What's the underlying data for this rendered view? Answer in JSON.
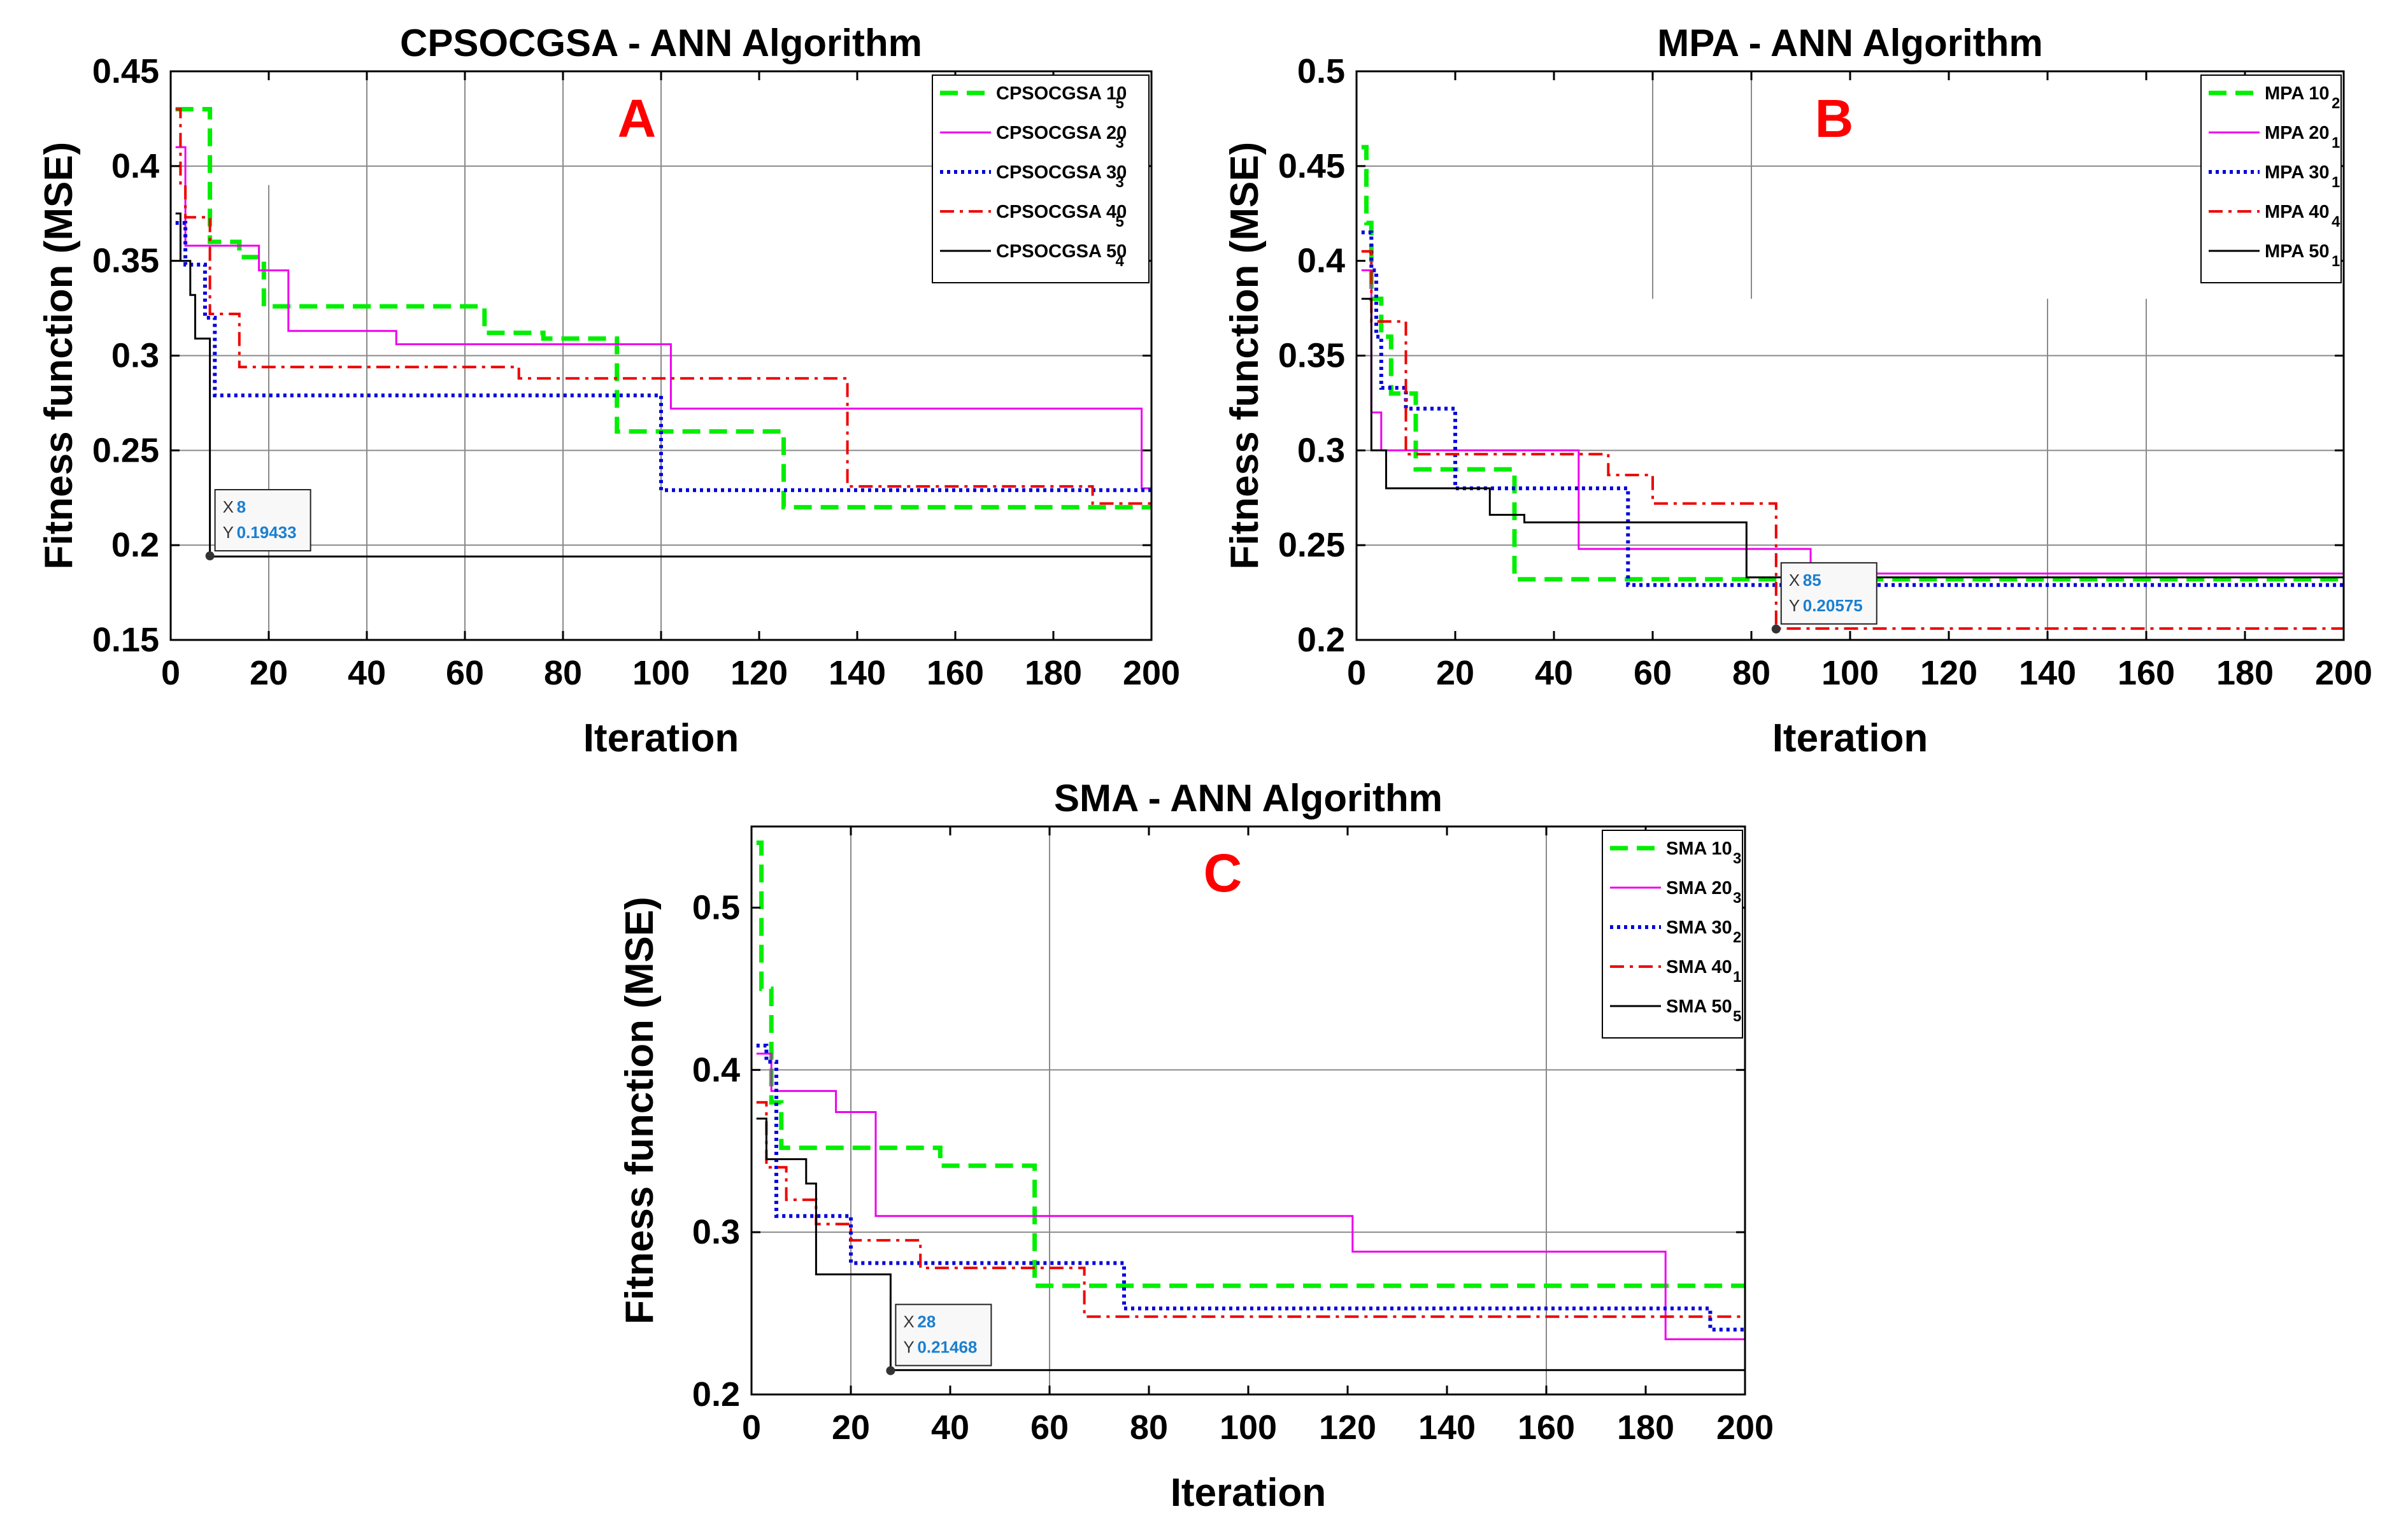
{
  "chart_data": [
    {
      "type": "line",
      "title": "CPSOCGSA - ANN Algorithm",
      "panel_letter": "A",
      "xlabel": "Iteration",
      "ylabel": "Fitness function (MSE)",
      "xlim": [
        0,
        200
      ],
      "ylim": [
        0.15,
        0.45
      ],
      "xticks": [
        0,
        20,
        40,
        60,
        80,
        100,
        120,
        140,
        160,
        180,
        200
      ],
      "yticks": [
        0.15,
        0.2,
        0.25,
        0.3,
        0.35,
        0.4,
        0.45
      ],
      "ytick_labels": [
        "0.15",
        "0.2",
        "0.25",
        "0.3",
        "0.35",
        "0.4",
        "0.45"
      ],
      "grid": true,
      "legend_position": "top-right",
      "series": [
        {
          "name": "CPSOCGSA 10",
          "subscript": "5",
          "color": "#00ee00",
          "style": "dashed",
          "points": [
            [
              1,
              0.43
            ],
            [
              2,
              0.43
            ],
            [
              7,
              0.43
            ],
            [
              8,
              0.36
            ],
            [
              14,
              0.36
            ],
            [
              14,
              0.352
            ],
            [
              18,
              0.352
            ],
            [
              19,
              0.326
            ],
            [
              63,
              0.326
            ],
            [
              64,
              0.312
            ],
            [
              74,
              0.312
            ],
            [
              76,
              0.309
            ],
            [
              90,
              0.309
            ],
            [
              91,
              0.26
            ],
            [
              124,
              0.26
            ],
            [
              125,
              0.22
            ],
            [
              200,
              0.22
            ]
          ]
        },
        {
          "name": "CPSOCGSA 20",
          "subscript": "3",
          "color": "#ee00ee",
          "style": "solid",
          "points": [
            [
              1,
              0.41
            ],
            [
              2,
              0.41
            ],
            [
              3,
              0.358
            ],
            [
              18,
              0.358
            ],
            [
              18,
              0.345
            ],
            [
              22,
              0.345
            ],
            [
              24,
              0.313
            ],
            [
              45,
              0.313
            ],
            [
              46,
              0.306
            ],
            [
              101,
              0.306
            ],
            [
              102,
              0.272
            ],
            [
              196,
              0.272
            ],
            [
              198,
              0.23
            ],
            [
              200,
              0.23
            ]
          ]
        },
        {
          "name": "CPSOCGSA 30",
          "subscript": "3",
          "color": "#0000dd",
          "style": "dotted",
          "points": [
            [
              1,
              0.37
            ],
            [
              2,
              0.37
            ],
            [
              3,
              0.348
            ],
            [
              6,
              0.348
            ],
            [
              7,
              0.32
            ],
            [
              9,
              0.32
            ],
            [
              9,
              0.279
            ],
            [
              98,
              0.279
            ],
            [
              100,
              0.229
            ],
            [
              200,
              0.229
            ]
          ]
        },
        {
          "name": "CPSOCGSA 40",
          "subscript": "5",
          "color": "#ee0000",
          "style": "dashdot",
          "points": [
            [
              1,
              0.43
            ],
            [
              2,
              0.39
            ],
            [
              3,
              0.373
            ],
            [
              7,
              0.373
            ],
            [
              8,
              0.322
            ],
            [
              12,
              0.322
            ],
            [
              14,
              0.294
            ],
            [
              70,
              0.294
            ],
            [
              71,
              0.288
            ],
            [
              137,
              0.288
            ],
            [
              138,
              0.231
            ],
            [
              187,
              0.231
            ],
            [
              188,
              0.222
            ],
            [
              200,
              0.222
            ]
          ]
        },
        {
          "name": "CPSOCGSA 50",
          "subscript": "4",
          "color": "#000000",
          "style": "solid",
          "points": [
            [
              1,
              0.375
            ],
            [
              2,
              0.35
            ],
            [
              4,
              0.332
            ],
            [
              5,
              0.309
            ],
            [
              7,
              0.309
            ],
            [
              8,
              0.194
            ],
            [
              200,
              0.194
            ]
          ]
        }
      ],
      "datatip": {
        "x": 8,
        "y": 0.19433,
        "x_label": "X",
        "y_label": "Y",
        "x_text": "8",
        "y_text": "0.19433"
      }
    },
    {
      "type": "line",
      "title": "MPA - ANN Algorithm",
      "panel_letter": "B",
      "xlabel": "Iteration",
      "ylabel": "Fitness function (MSE)",
      "xlim": [
        0,
        200
      ],
      "ylim": [
        0.2,
        0.5
      ],
      "xticks": [
        0,
        20,
        40,
        60,
        80,
        100,
        120,
        140,
        160,
        180,
        200
      ],
      "yticks": [
        0.2,
        0.25,
        0.3,
        0.35,
        0.4,
        0.45,
        0.5
      ],
      "ytick_labels": [
        "0.2",
        "0.25",
        "0.3",
        "0.35",
        "0.4",
        "0.45",
        "0.5"
      ],
      "grid": true,
      "legend_position": "top-right",
      "series": [
        {
          "name": "MPA 10",
          "subscript": "2",
          "color": "#00ee00",
          "style": "dashed",
          "points": [
            [
              1,
              0.46
            ],
            [
              2,
              0.42
            ],
            [
              3,
              0.38
            ],
            [
              5,
              0.36
            ],
            [
              7,
              0.33
            ],
            [
              11,
              0.33
            ],
            [
              12,
              0.29
            ],
            [
              30,
              0.29
            ],
            [
              32,
              0.232
            ],
            [
              200,
              0.232
            ]
          ]
        },
        {
          "name": "MPA 20",
          "subscript": "1",
          "color": "#ee00ee",
          "style": "solid",
          "points": [
            [
              1,
              0.395
            ],
            [
              3,
              0.32
            ],
            [
              5,
              0.3
            ],
            [
              43,
              0.3
            ],
            [
              45,
              0.248
            ],
            [
              91,
              0.248
            ],
            [
              92,
              0.235
            ],
            [
              200,
              0.235
            ]
          ]
        },
        {
          "name": "MPA 30",
          "subscript": "1",
          "color": "#0000dd",
          "style": "dotted",
          "points": [
            [
              1,
              0.415
            ],
            [
              3,
              0.395
            ],
            [
              4,
              0.36
            ],
            [
              5,
              0.333
            ],
            [
              8,
              0.333
            ],
            [
              10,
              0.322
            ],
            [
              19,
              0.322
            ],
            [
              20,
              0.28
            ],
            [
              53,
              0.28
            ],
            [
              55,
              0.229
            ],
            [
              200,
              0.229
            ]
          ]
        },
        {
          "name": "MPA 40",
          "subscript": "4",
          "color": "#ee0000",
          "style": "dashdot",
          "points": [
            [
              1,
              0.405
            ],
            [
              3,
              0.368
            ],
            [
              8,
              0.368
            ],
            [
              10,
              0.298
            ],
            [
              50,
              0.298
            ],
            [
              51,
              0.287
            ],
            [
              59,
              0.287
            ],
            [
              60,
              0.272
            ],
            [
              84,
              0.272
            ],
            [
              85,
              0.206
            ],
            [
              200,
              0.206
            ]
          ]
        },
        {
          "name": "MPA 50",
          "subscript": "1",
          "color": "#000000",
          "style": "solid",
          "points": [
            [
              1,
              0.38
            ],
            [
              3,
              0.3
            ],
            [
              6,
              0.28
            ],
            [
              26,
              0.28
            ],
            [
              27,
              0.266
            ],
            [
              33,
              0.266
            ],
            [
              34,
              0.262
            ],
            [
              78,
              0.262
            ],
            [
              79,
              0.233
            ],
            [
              200,
              0.233
            ]
          ]
        }
      ],
      "datatip": {
        "x": 85,
        "y": 0.20575,
        "x_label": "X",
        "y_label": "Y",
        "x_text": "85",
        "y_text": "0.20575"
      }
    },
    {
      "type": "line",
      "title": "SMA - ANN Algorithm",
      "panel_letter": "C",
      "xlabel": "Iteration",
      "ylabel": "Fitness function (MSE)",
      "xlim": [
        0,
        200
      ],
      "ylim": [
        0.2,
        0.55
      ],
      "xticks": [
        0,
        20,
        40,
        60,
        80,
        100,
        120,
        140,
        160,
        180,
        200
      ],
      "yticks": [
        0.2,
        0.3,
        0.4,
        0.5
      ],
      "ytick_labels": [
        "0.2",
        "0.3",
        "0.4",
        "0.5"
      ],
      "grid": true,
      "legend_position": "top-right",
      "series": [
        {
          "name": "SMA 10",
          "subscript": "3",
          "color": "#00ee00",
          "style": "dashed",
          "points": [
            [
              1,
              0.54
            ],
            [
              2,
              0.45
            ],
            [
              4,
              0.38
            ],
            [
              6,
              0.352
            ],
            [
              35,
              0.352
            ],
            [
              38,
              0.341
            ],
            [
              55,
              0.341
            ],
            [
              57,
              0.267
            ],
            [
              200,
              0.267
            ]
          ]
        },
        {
          "name": "SMA 20",
          "subscript": "3",
          "color": "#ee00ee",
          "style": "solid",
          "points": [
            [
              1,
              0.41
            ],
            [
              4,
              0.387
            ],
            [
              17,
              0.387
            ],
            [
              17,
              0.374
            ],
            [
              22,
              0.374
            ],
            [
              25,
              0.31
            ],
            [
              119,
              0.31
            ],
            [
              121,
              0.288
            ],
            [
              182,
              0.288
            ],
            [
              184,
              0.234
            ],
            [
              200,
              0.234
            ]
          ]
        },
        {
          "name": "SMA 30",
          "subscript": "2",
          "color": "#0000dd",
          "style": "dotted",
          "points": [
            [
              1,
              0.415
            ],
            [
              3,
              0.405
            ],
            [
              5,
              0.31
            ],
            [
              19,
              0.31
            ],
            [
              20,
              0.281
            ],
            [
              74,
              0.281
            ],
            [
              75,
              0.253
            ],
            [
              191,
              0.253
            ],
            [
              193,
              0.24
            ],
            [
              200,
              0.24
            ]
          ]
        },
        {
          "name": "SMA 40",
          "subscript": "1",
          "color": "#ee0000",
          "style": "dashdot",
          "points": [
            [
              1,
              0.38
            ],
            [
              3,
              0.34
            ],
            [
              7,
              0.32
            ],
            [
              12,
              0.32
            ],
            [
              13,
              0.305
            ],
            [
              19,
              0.305
            ],
            [
              20,
              0.295
            ],
            [
              33,
              0.295
            ],
            [
              34,
              0.278
            ],
            [
              65,
              0.278
            ],
            [
              67,
              0.248
            ],
            [
              200,
              0.248
            ]
          ]
        },
        {
          "name": "SMA 50",
          "subscript": "5",
          "color": "#000000",
          "style": "solid",
          "points": [
            [
              1,
              0.37
            ],
            [
              3,
              0.345
            ],
            [
              10,
              0.345
            ],
            [
              11,
              0.33
            ],
            [
              13,
              0.311
            ],
            [
              13,
              0.274
            ],
            [
              27,
              0.274
            ],
            [
              28,
              0.215
            ],
            [
              200,
              0.215
            ]
          ]
        }
      ],
      "datatip": {
        "x": 28,
        "y": 0.21468,
        "x_label": "X",
        "y_label": "Y",
        "x_text": "28",
        "y_text": "0.21468"
      }
    }
  ]
}
